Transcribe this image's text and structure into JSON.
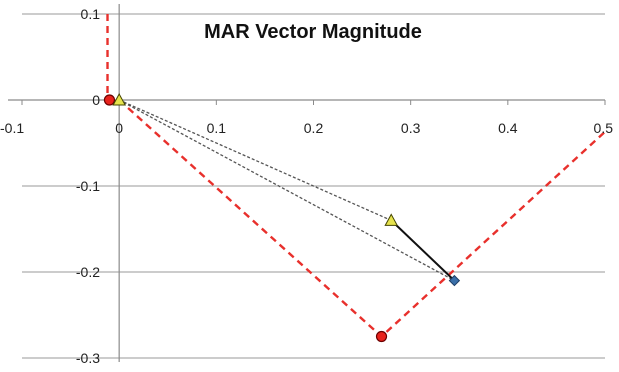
{
  "chart_data": {
    "type": "scatter",
    "title": "MAR Vector Magnitude",
    "xlabel": "",
    "ylabel": "",
    "xlim": [
      -0.1,
      0.5
    ],
    "ylim": [
      -0.3,
      0.1
    ],
    "x_ticks": [
      "-0.1",
      "0",
      "0.1",
      "0.2",
      "0.3",
      "0.4",
      "0.5"
    ],
    "y_ticks": [
      "0.1",
      "0",
      "-0.1",
      "-0.2",
      "-0.3"
    ],
    "grid": "horizontal",
    "legend": "none",
    "series": [
      {
        "marker": "circle",
        "color": "#e8221c",
        "points": [
          {
            "x": -0.01,
            "y": 0.0
          },
          {
            "x": 0.27,
            "y": -0.275
          }
        ]
      },
      {
        "marker": "triangle",
        "color": "#e6e34d",
        "points": [
          {
            "x": 0.0,
            "y": 0.0
          },
          {
            "x": 0.28,
            "y": -0.14
          }
        ]
      },
      {
        "marker": "diamond",
        "color": "#3a6fa8",
        "points": [
          {
            "x": 0.345,
            "y": -0.21
          }
        ]
      }
    ],
    "lines": [
      {
        "style": "dashed",
        "color": "#e8302c",
        "points": [
          {
            "x": -0.012,
            "y": 0.1
          },
          {
            "x": -0.012,
            "y": 0.0
          }
        ]
      },
      {
        "style": "dashed",
        "color": "#e8302c",
        "points": [
          {
            "x": 0.0,
            "y": 0.0
          },
          {
            "x": 0.27,
            "y": -0.275
          },
          {
            "x": 0.5,
            "y": -0.037
          }
        ]
      },
      {
        "style": "dotted",
        "color": "#555555",
        "points": [
          {
            "x": 0.0,
            "y": 0.0
          },
          {
            "x": 0.28,
            "y": -0.14
          }
        ]
      },
      {
        "style": "dotted",
        "color": "#555555",
        "points": [
          {
            "x": 0.0,
            "y": 0.0
          },
          {
            "x": 0.345,
            "y": -0.21
          }
        ]
      },
      {
        "style": "solid",
        "color": "#111111",
        "points": [
          {
            "x": 0.28,
            "y": -0.14
          },
          {
            "x": 0.345,
            "y": -0.21
          }
        ]
      }
    ]
  }
}
